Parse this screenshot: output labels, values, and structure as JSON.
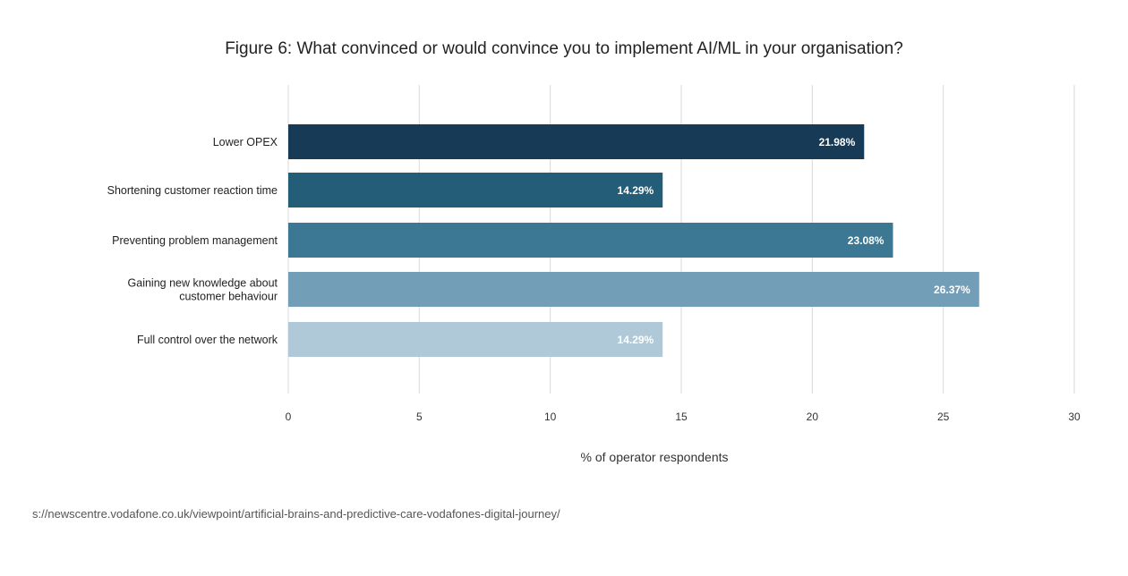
{
  "chart_data": {
    "type": "bar",
    "orientation": "horizontal",
    "title": "Figure 6: What convinced or would convince you to implement AI/ML in your organisation?",
    "categories": [
      [
        "Lower OPEX"
      ],
      [
        "Shortening customer reaction time"
      ],
      [
        "Preventing problem management"
      ],
      [
        "Gaining new knowledge about",
        "customer behaviour"
      ],
      [
        "Full control over the network"
      ]
    ],
    "values": [
      21.98,
      14.29,
      23.08,
      26.37,
      14.29
    ],
    "data_labels": [
      "21.98%",
      "14.29%",
      "23.08%",
      "26.37%",
      "14.29%"
    ],
    "colors": [
      "#173a56",
      "#235d78",
      "#3c7894",
      "#729eb7",
      "#b0c9d8"
    ],
    "xlabel": "% of operator respondents",
    "ylabel": "",
    "xlim": [
      0,
      30
    ],
    "xticks": [
      "0",
      "5",
      "10",
      "15",
      "20",
      "25",
      "30"
    ],
    "grid": true,
    "legend": "none"
  },
  "source": "s://newscentre.vodafone.co.uk/viewpoint/artificial-brains-and-predictive-care-vodafones-digital-journey/"
}
